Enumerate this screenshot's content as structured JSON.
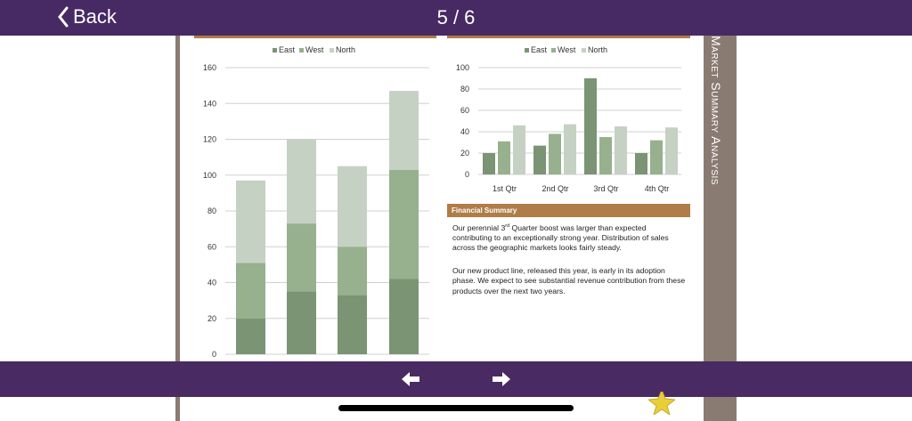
{
  "header": {
    "back_label": "Back",
    "page_indicator": "5 / 6",
    "back_icon": "chevron-left-icon"
  },
  "side_tab": {
    "title": "Market Summary Analysis"
  },
  "colors": {
    "header": "#472a63",
    "accent": "#b07d48",
    "side_tab": "#8a7b72",
    "east": "#7a9474",
    "west": "#97b08e",
    "north": "#c5d1c3"
  },
  "chart_data": [
    {
      "type": "bar",
      "stacked": true,
      "legend": [
        "East",
        "West",
        "North"
      ],
      "legend_position": "top",
      "categories": [
        "",
        "",
        "",
        ""
      ],
      "series": [
        {
          "name": "East",
          "values": [
            20,
            35,
            33,
            42
          ]
        },
        {
          "name": "West",
          "values": [
            31,
            38,
            27,
            61
          ]
        },
        {
          "name": "North",
          "values": [
            46,
            47,
            45,
            44
          ]
        }
      ],
      "ylim": [
        0,
        160
      ],
      "yticks": [
        0,
        20,
        40,
        60,
        80,
        100,
        120,
        140,
        160
      ],
      "grid": true
    },
    {
      "type": "bar",
      "stacked": false,
      "legend": [
        "East",
        "West",
        "North"
      ],
      "legend_position": "top",
      "categories": [
        "1st Qtr",
        "2nd Qtr",
        "3rd Qtr",
        "4th Qtr"
      ],
      "series": [
        {
          "name": "East",
          "values": [
            20,
            27,
            90,
            20
          ]
        },
        {
          "name": "West",
          "values": [
            31,
            38,
            35,
            32
          ]
        },
        {
          "name": "North",
          "values": [
            46,
            47,
            45,
            44
          ]
        }
      ],
      "ylim": [
        0,
        100
      ],
      "yticks": [
        0,
        20,
        40,
        60,
        80,
        100
      ],
      "grid": true
    }
  ],
  "summary": {
    "heading": "Financial Summary",
    "p1_before": "Our perennial 3",
    "p1_sup": "rd",
    "p1_after": " Quarter boost was larger than expected contributing to an exceptionally strong year. Distribution of sales across the geographic markets looks fairly steady.",
    "p2": "Our new product line, released this year, is early in its adoption phase. We expect to see substantial revenue contribution from these products over the next two years."
  },
  "footer": {
    "prev_icon": "arrow-left-icon",
    "next_icon": "arrow-right-icon",
    "bookmark_icon": "star-icon"
  }
}
